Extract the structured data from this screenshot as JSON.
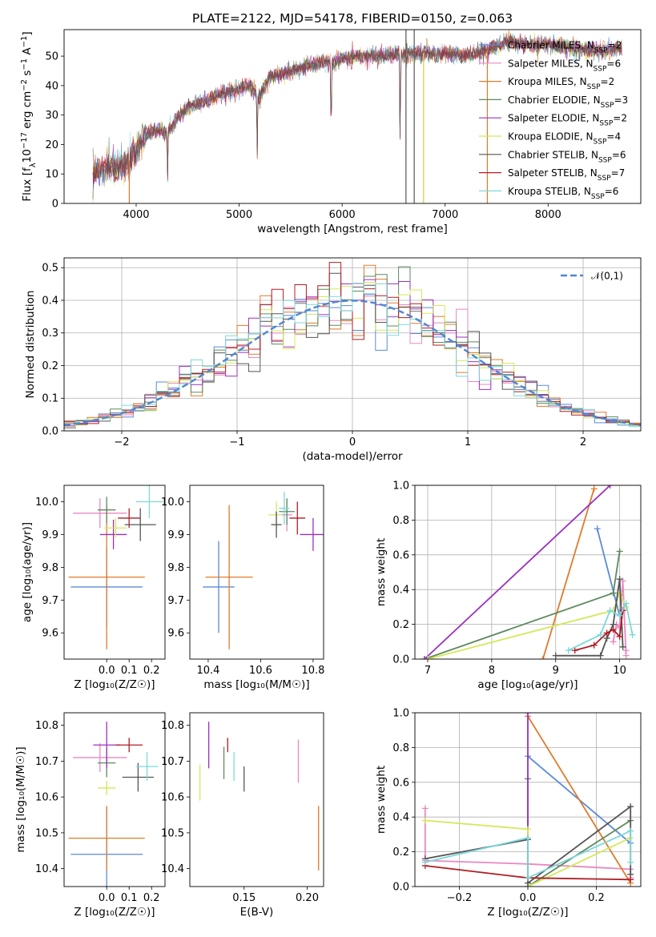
{
  "figure_title": "PLATE=2122, MJD=54178, FIBERID=0150, z=0.063",
  "colors": {
    "Chabrier MILES": "#5b8ad6",
    "Salpeter MILES": "#e889c0",
    "Kroupa MILES": "#e07a2a",
    "Chabrier ELODIE": "#5e8a5e",
    "Salpeter ELODIE": "#9b30c0",
    "Kroupa ELODIE": "#d4e85a",
    "Chabrier STELIB": "#555555",
    "Salpeter STELIB": "#b01c24",
    "Kroupa STELIB": "#7cd8d8"
  },
  "chart_data": [
    {
      "id": "spectrum",
      "type": "line",
      "xlabel": "wavelength [Angstrom, rest frame]",
      "ylabel": "Flux [f_λ10^-17 erg cm^-2 s^-1 A^-1]",
      "xlim": [
        3300,
        8900
      ],
      "ylim": [
        0,
        59
      ],
      "xticks": [
        4000,
        5000,
        6000,
        7000,
        8000
      ],
      "yticks": [
        0,
        10,
        20,
        30,
        40,
        50
      ],
      "grid": false,
      "legend_placement": "right",
      "legend": [
        {
          "model": "Chabrier MILES",
          "label": "Chabrier MILES, N",
          "sub": "SSP",
          "n": "=2"
        },
        {
          "model": "Salpeter MILES",
          "label": "Salpeter MILES, N",
          "sub": "SSP",
          "n": "=6"
        },
        {
          "model": "Kroupa MILES",
          "label": "Kroupa MILES, N",
          "sub": "SSP",
          "n": "=2"
        },
        {
          "model": "Chabrier ELODIE",
          "label": "Chabrier ELODIE, N",
          "sub": "SSP",
          "n": "=3"
        },
        {
          "model": "Salpeter ELODIE",
          "label": "Salpeter ELODIE, N",
          "sub": "SSP",
          "n": "=2"
        },
        {
          "model": "Kroupa ELODIE",
          "label": "Kroupa ELODIE, N",
          "sub": "SSP",
          "n": "=4"
        },
        {
          "model": "Chabrier STELIB",
          "label": "Chabrier STELIB, N",
          "sub": "SSP",
          "n": "=6"
        },
        {
          "model": "Salpeter STELIB",
          "label": "Salpeter STELIB, N",
          "sub": "SSP",
          "n": "=7"
        },
        {
          "model": "Kroupa STELIB",
          "label": "Kroupa STELIB, N",
          "sub": "SSP",
          "n": "=6"
        }
      ],
      "continuum": [
        [
          3580,
          10
        ],
        [
          3700,
          12
        ],
        [
          3800,
          12
        ],
        [
          3900,
          13
        ],
        [
          4000,
          18
        ],
        [
          4100,
          23
        ],
        [
          4200,
          25
        ],
        [
          4300,
          24
        ],
        [
          4400,
          29
        ],
        [
          4500,
          33
        ],
        [
          4600,
          34
        ],
        [
          4700,
          35
        ],
        [
          4800,
          37
        ],
        [
          4900,
          38
        ],
        [
          5000,
          39
        ],
        [
          5100,
          40
        ],
        [
          5200,
          36
        ],
        [
          5300,
          43
        ],
        [
          5400,
          44
        ],
        [
          5500,
          45
        ],
        [
          5600,
          46
        ],
        [
          5700,
          47
        ],
        [
          5800,
          48
        ],
        [
          5900,
          48
        ],
        [
          6000,
          49
        ],
        [
          6200,
          50
        ],
        [
          6400,
          50
        ],
        [
          6600,
          51
        ],
        [
          6800,
          51
        ],
        [
          7000,
          51
        ],
        [
          7200,
          50
        ],
        [
          7400,
          52
        ],
        [
          7600,
          55
        ],
        [
          7800,
          54
        ],
        [
          8000,
          54
        ],
        [
          8200,
          53
        ],
        [
          8400,
          52
        ],
        [
          8600,
          52
        ],
        [
          8720,
          53
        ]
      ],
      "notches": [
        [
          3933,
          7
        ],
        [
          4305,
          16
        ],
        [
          5175,
          20
        ],
        [
          5893,
          27
        ],
        [
          6563,
          31
        ]
      ]
    },
    {
      "id": "residuals",
      "type": "histogram",
      "xlabel": "(data-model)/error",
      "ylabel": "Normed distribution",
      "xlim": [
        -2.5,
        2.5
      ],
      "ylim": [
        0,
        0.53
      ],
      "xticks": [
        -2,
        -1,
        0,
        1,
        2
      ],
      "xtick_labels": [
        "−2",
        "−1",
        "0",
        "1",
        "2"
      ],
      "yticks": [
        0.0,
        0.1,
        0.2,
        0.3,
        0.4,
        0.5
      ],
      "grid": true,
      "legend_placement": "top-right",
      "bin_width": 0.1,
      "reference_curve": {
        "label": "𝒩(0,1)",
        "type": "normal",
        "mean": 0,
        "sd": 1
      }
    },
    {
      "id": "age_vs_Z",
      "type": "errorbar",
      "xlabel": "Z [log₁₀(Z/Z☉)]",
      "ylabel": "age  [log₁₀(age/yr)]",
      "xlim": [
        -0.19,
        0.26
      ],
      "ylim": [
        9.52,
        10.05
      ],
      "xticks": [
        0.0,
        0.1,
        0.2
      ],
      "yticks": [
        9.6,
        9.7,
        9.8,
        9.9,
        10.0
      ],
      "grid": false,
      "points": [
        {
          "model": "Chabrier MILES",
          "x": 0.0,
          "y": 9.74,
          "xerr": 0.16,
          "yerr": 0.12
        },
        {
          "model": "Kroupa MILES",
          "x": 0.0,
          "y": 9.77,
          "xerr": 0.17,
          "yerr": 0.22
        },
        {
          "model": "Salpeter MILES",
          "x": -0.03,
          "y": 9.965,
          "xerr": 0.12,
          "yerr": 0.045
        },
        {
          "model": "Chabrier ELODIE",
          "x": 0.0,
          "y": 9.975,
          "xerr": 0.04,
          "yerr": 0.04
        },
        {
          "model": "Salpeter ELODIE",
          "x": 0.03,
          "y": 9.9,
          "xerr": 0.06,
          "yerr": 0.045
        },
        {
          "model": "Kroupa ELODIE",
          "x": 0.04,
          "y": 9.92,
          "xerr": 0.05,
          "yerr": 0.03
        },
        {
          "model": "Salpeter STELIB",
          "x": 0.1,
          "y": 9.95,
          "xerr": 0.05,
          "yerr": 0.03
        },
        {
          "model": "Chabrier STELIB",
          "x": 0.15,
          "y": 9.93,
          "xerr": 0.07,
          "yerr": 0.05
        },
        {
          "model": "Kroupa STELIB",
          "x": 0.19,
          "y": 10.0,
          "xerr": 0.06,
          "yerr": 0.05
        }
      ]
    },
    {
      "id": "age_vs_mass",
      "type": "errorbar",
      "xlabel": "mass [log₁₀(M/M☉)]",
      "ylabel": "",
      "xlim": [
        10.33,
        10.84
      ],
      "ylim": [
        9.52,
        10.05
      ],
      "xticks": [
        10.4,
        10.6,
        10.8
      ],
      "yticks": [
        9.6,
        9.7,
        9.8,
        9.9,
        10.0
      ],
      "grid": false,
      "points": [
        {
          "model": "Chabrier MILES",
          "x": 10.44,
          "y": 9.74,
          "xerr": 0.06,
          "yerr": 0.14
        },
        {
          "model": "Kroupa MILES",
          "x": 10.48,
          "y": 9.77,
          "xerr": 0.09,
          "yerr": 0.22
        },
        {
          "model": "Kroupa ELODIE",
          "x": 10.66,
          "y": 9.96,
          "xerr": 0.03,
          "yerr": 0.04
        },
        {
          "model": "Chabrier STELIB",
          "x": 10.66,
          "y": 9.93,
          "xerr": 0.02,
          "yerr": 0.04
        },
        {
          "model": "Salpeter MILES",
          "x": 10.7,
          "y": 9.96,
          "xerr": 0.02,
          "yerr": 0.05
        },
        {
          "model": "Chabrier ELODIE",
          "x": 10.7,
          "y": 9.97,
          "xerr": 0.03,
          "yerr": 0.04
        },
        {
          "model": "Kroupa STELIB",
          "x": 10.69,
          "y": 9.98,
          "xerr": 0.02,
          "yerr": 0.05
        },
        {
          "model": "Salpeter STELIB",
          "x": 10.74,
          "y": 9.95,
          "xerr": 0.03,
          "yerr": 0.05
        },
        {
          "model": "Salpeter ELODIE",
          "x": 10.8,
          "y": 9.9,
          "xerr": 0.05,
          "yerr": 0.05
        }
      ]
    },
    {
      "id": "weight_vs_age",
      "type": "line",
      "xlabel": "age  [log₁₀(age/yr)]",
      "ylabel": "mass weight",
      "xlim": [
        6.8,
        10.33
      ],
      "ylim": [
        0,
        1.0
      ],
      "xticks": [
        7,
        8,
        9,
        10
      ],
      "yticks": [
        0.0,
        0.2,
        0.4,
        0.6,
        0.8,
        1.0
      ],
      "grid": true,
      "series": [
        {
          "model": "Chabrier MILES",
          "points": [
            [
              9.65,
              0.75
            ],
            [
              10.0,
              0.25
            ]
          ]
        },
        {
          "model": "Salpeter MILES",
          "points": [
            [
              9.9,
              0.1
            ],
            [
              9.95,
              0.2
            ],
            [
              10.0,
              0.18
            ],
            [
              10.05,
              0.45
            ],
            [
              10.1,
              0.02
            ],
            [
              10.1,
              0.05
            ]
          ]
        },
        {
          "model": "Kroupa MILES",
          "points": [
            [
              8.8,
              0.0
            ],
            [
              9.6,
              0.98
            ]
          ]
        },
        {
          "model": "Chabrier ELODIE",
          "points": [
            [
              6.95,
              0.0
            ],
            [
              9.9,
              0.38
            ],
            [
              10.0,
              0.62
            ]
          ]
        },
        {
          "model": "Salpeter ELODIE",
          "points": [
            [
              6.95,
              0.0
            ],
            [
              9.85,
              1.0
            ]
          ]
        },
        {
          "model": "Kroupa ELODIE",
          "points": [
            [
              7.0,
              0.0
            ],
            [
              9.9,
              0.28
            ],
            [
              10.0,
              0.38
            ],
            [
              10.1,
              0.3
            ]
          ]
        },
        {
          "model": "Chabrier STELIB",
          "points": [
            [
              9.0,
              0.02
            ],
            [
              9.7,
              0.02
            ],
            [
              9.8,
              0.12
            ],
            [
              9.9,
              0.2
            ],
            [
              10.0,
              0.46
            ],
            [
              10.05,
              0.07
            ]
          ]
        },
        {
          "model": "Salpeter STELIB",
          "points": [
            [
              9.3,
              0.05
            ],
            [
              9.6,
              0.08
            ],
            [
              9.8,
              0.15
            ],
            [
              9.9,
              0.17
            ],
            [
              10.0,
              0.13
            ],
            [
              10.05,
              0.28
            ]
          ]
        },
        {
          "model": "Kroupa STELIB",
          "points": [
            [
              9.2,
              0.05
            ],
            [
              9.7,
              0.14
            ],
            [
              9.85,
              0.28
            ],
            [
              10.0,
              0.25
            ],
            [
              10.1,
              0.32
            ],
            [
              10.2,
              0.14
            ]
          ]
        }
      ]
    },
    {
      "id": "mass_vs_Z",
      "type": "errorbar",
      "xlabel": "Z [log₁₀(Z/Z☉)]",
      "ylabel": "mass [log₁₀(M/M☉)]",
      "xlim": [
        -0.19,
        0.26
      ],
      "ylim": [
        10.35,
        10.835
      ],
      "xticks": [
        0.0,
        0.1,
        0.2
      ],
      "yticks": [
        10.4,
        10.5,
        10.6,
        10.7,
        10.8
      ],
      "grid": false,
      "points": [
        {
          "model": "Chabrier MILES",
          "x": 0.0,
          "y": 10.44,
          "xerr": 0.16,
          "yerr": 0.13
        },
        {
          "model": "Kroupa MILES",
          "x": 0.0,
          "y": 10.485,
          "xerr": 0.17,
          "yerr": 0.09
        },
        {
          "model": "Salpeter MILES",
          "x": -0.03,
          "y": 10.71,
          "xerr": 0.12,
          "yerr": 0.04
        },
        {
          "model": "Chabrier ELODIE",
          "x": 0.0,
          "y": 10.695,
          "xerr": 0.04,
          "yerr": 0.04
        },
        {
          "model": "Salpeter ELODIE",
          "x": 0.0,
          "y": 10.745,
          "xerr": 0.06,
          "yerr": 0.065
        },
        {
          "model": "Kroupa ELODIE",
          "x": 0.0,
          "y": 10.625,
          "xerr": 0.04,
          "yerr": 0.02
        },
        {
          "model": "Salpeter STELIB",
          "x": 0.1,
          "y": 10.745,
          "xerr": 0.06,
          "yerr": 0.02
        },
        {
          "model": "Chabrier STELIB",
          "x": 0.14,
          "y": 10.655,
          "xerr": 0.07,
          "yerr": 0.04
        },
        {
          "model": "Kroupa STELIB",
          "x": 0.18,
          "y": 10.685,
          "xerr": 0.05,
          "yerr": 0.04
        }
      ]
    },
    {
      "id": "mass_vs_ebv",
      "type": "errorbar",
      "xlabel": "E(B-V)",
      "ylabel": "",
      "xlim": [
        0.107,
        0.213
      ],
      "ylim": [
        10.35,
        10.835
      ],
      "xticks": [
        0.15,
        0.2
      ],
      "yticks": [
        10.4,
        10.5,
        10.6,
        10.7,
        10.8
      ],
      "grid": false,
      "points": [
        {
          "model": "Kroupa ELODIE",
          "x": 0.115,
          "y": 10.64,
          "xerr": 0,
          "yerr": 0.05
        },
        {
          "model": "Salpeter ELODIE",
          "x": 0.122,
          "y": 10.745,
          "xerr": 0,
          "yerr": 0.065
        },
        {
          "model": "Chabrier ELODIE",
          "x": 0.134,
          "y": 10.695,
          "xerr": 0,
          "yerr": 0.045
        },
        {
          "model": "Salpeter STELIB",
          "x": 0.137,
          "y": 10.745,
          "xerr": 0,
          "yerr": 0.02
        },
        {
          "model": "Kroupa STELIB",
          "x": 0.142,
          "y": 10.685,
          "xerr": 0,
          "yerr": 0.04
        },
        {
          "model": "Chabrier STELIB",
          "x": 0.15,
          "y": 10.65,
          "xerr": 0,
          "yerr": 0.035
        },
        {
          "model": "Salpeter MILES",
          "x": 0.193,
          "y": 10.7,
          "xerr": 0,
          "yerr": 0.06
        },
        {
          "model": "Kroupa MILES",
          "x": 0.209,
          "y": 10.485,
          "xerr": 0,
          "yerr": 0.09
        }
      ]
    },
    {
      "id": "weight_vs_Z",
      "type": "line",
      "xlabel": "Z [log₁₀(Z/Z☉)]",
      "ylabel": "mass weight",
      "xlim": [
        -0.33,
        0.33
      ],
      "ylim": [
        0,
        1.0
      ],
      "xticks": [
        -0.2,
        0.0,
        0.2
      ],
      "xtick_labels": [
        "−0.2",
        "0.0",
        "0.2"
      ],
      "yticks": [
        0.0,
        0.2,
        0.4,
        0.6,
        0.8,
        1.0
      ],
      "grid": true,
      "series": [
        {
          "model": "Chabrier MILES",
          "points": [
            [
              0.0,
              0.75
            ],
            [
              0.3,
              0.25
            ]
          ]
        },
        {
          "model": "Salpeter MILES",
          "points": [
            [
              -0.3,
              0.45
            ],
            [
              -0.3,
              0.15
            ],
            [
              0.0,
              0.13
            ],
            [
              0.3,
              0.1
            ],
            [
              0.3,
              0.05
            ]
          ]
        },
        {
          "model": "Kroupa MILES",
          "points": [
            [
              0.0,
              0.98
            ],
            [
              0.3,
              0.02
            ]
          ]
        },
        {
          "model": "Chabrier ELODIE",
          "points": [
            [
              0.0,
              0.62
            ],
            [
              0.0,
              0.0
            ],
            [
              0.3,
              0.38
            ]
          ]
        },
        {
          "model": "Salpeter ELODIE",
          "points": [
            [
              0.0,
              1.0
            ],
            [
              0.0,
              0.0
            ]
          ]
        },
        {
          "model": "Kroupa ELODIE",
          "points": [
            [
              -0.3,
              0.38
            ],
            [
              0.0,
              0.33
            ],
            [
              0.0,
              0.0
            ],
            [
              0.3,
              0.28
            ]
          ]
        },
        {
          "model": "Chabrier STELIB",
          "points": [
            [
              -0.3,
              0.16
            ],
            [
              0.0,
              0.27
            ],
            [
              0.0,
              0.02
            ],
            [
              0.3,
              0.46
            ],
            [
              0.3,
              0.07
            ]
          ]
        },
        {
          "model": "Salpeter STELIB",
          "points": [
            [
              -0.3,
              0.12
            ],
            [
              0.0,
              0.05
            ],
            [
              0.3,
              0.04
            ]
          ]
        },
        {
          "model": "Kroupa STELIB",
          "points": [
            [
              -0.3,
              0.14
            ],
            [
              0.0,
              0.28
            ],
            [
              0.0,
              0.05
            ],
            [
              0.3,
              0.32
            ],
            [
              0.3,
              0.14
            ]
          ]
        }
      ]
    }
  ]
}
